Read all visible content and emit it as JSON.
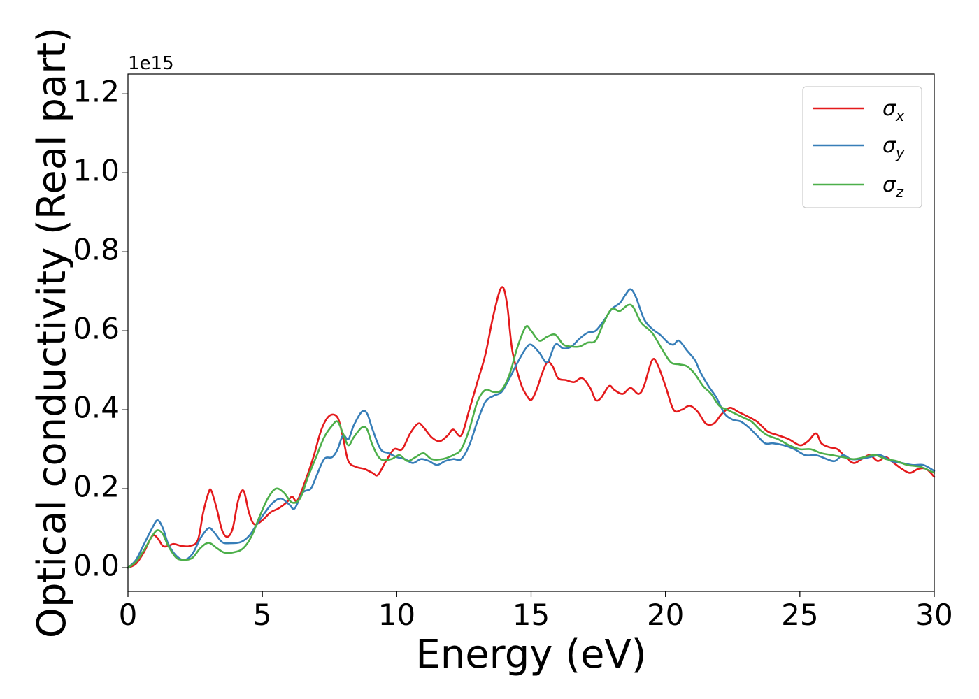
{
  "chart_data": {
    "type": "line",
    "xlabel": "Energy (eV)",
    "ylabel": "Optical conductivity (Real part)",
    "y_offset_text": "1e15",
    "xlim": [
      0,
      30
    ],
    "ylim": [
      -0.06,
      1.25
    ],
    "x_ticks": [
      0,
      5,
      10,
      15,
      20,
      25,
      30
    ],
    "x_tick_labels": [
      "0",
      "5",
      "10",
      "15",
      "20",
      "25",
      "30"
    ],
    "y_ticks": [
      0.0,
      0.2,
      0.4,
      0.6,
      0.8,
      1.0,
      1.2
    ],
    "y_tick_labels": [
      "0.0",
      "0.2",
      "0.4",
      "0.6",
      "0.8",
      "1.0",
      "1.2"
    ],
    "grid": false,
    "legend_position": "top-right",
    "series": [
      {
        "name": "σx",
        "symbol": "σ",
        "subscript": "x",
        "color": "#e41a1c",
        "points": [
          [
            0,
            0
          ],
          [
            0.3,
            0.01
          ],
          [
            0.6,
            0.04
          ],
          [
            0.9,
            0.08
          ],
          [
            1.1,
            0.075
          ],
          [
            1.3,
            0.055
          ],
          [
            1.5,
            0.055
          ],
          [
            1.7,
            0.06
          ],
          [
            2.0,
            0.055
          ],
          [
            2.3,
            0.055
          ],
          [
            2.6,
            0.07
          ],
          [
            2.8,
            0.14
          ],
          [
            3.0,
            0.19
          ],
          [
            3.1,
            0.195
          ],
          [
            3.3,
            0.15
          ],
          [
            3.5,
            0.095
          ],
          [
            3.7,
            0.078
          ],
          [
            3.9,
            0.1
          ],
          [
            4.1,
            0.17
          ],
          [
            4.3,
            0.195
          ],
          [
            4.5,
            0.14
          ],
          [
            4.7,
            0.11
          ],
          [
            5.0,
            0.12
          ],
          [
            5.3,
            0.14
          ],
          [
            5.6,
            0.15
          ],
          [
            5.9,
            0.165
          ],
          [
            6.1,
            0.18
          ],
          [
            6.3,
            0.17
          ],
          [
            6.6,
            0.22
          ],
          [
            6.9,
            0.28
          ],
          [
            7.2,
            0.35
          ],
          [
            7.5,
            0.385
          ],
          [
            7.8,
            0.38
          ],
          [
            8.0,
            0.33
          ],
          [
            8.2,
            0.27
          ],
          [
            8.5,
            0.255
          ],
          [
            8.8,
            0.25
          ],
          [
            9.1,
            0.24
          ],
          [
            9.3,
            0.235
          ],
          [
            9.6,
            0.27
          ],
          [
            9.9,
            0.3
          ],
          [
            10.2,
            0.3
          ],
          [
            10.5,
            0.34
          ],
          [
            10.8,
            0.365
          ],
          [
            11.0,
            0.355
          ],
          [
            11.3,
            0.33
          ],
          [
            11.6,
            0.32
          ],
          [
            11.9,
            0.335
          ],
          [
            12.1,
            0.35
          ],
          [
            12.4,
            0.335
          ],
          [
            12.7,
            0.4
          ],
          [
            13.0,
            0.47
          ],
          [
            13.3,
            0.54
          ],
          [
            13.6,
            0.64
          ],
          [
            13.9,
            0.71
          ],
          [
            14.1,
            0.67
          ],
          [
            14.3,
            0.55
          ],
          [
            14.6,
            0.47
          ],
          [
            14.8,
            0.44
          ],
          [
            15.0,
            0.425
          ],
          [
            15.2,
            0.45
          ],
          [
            15.4,
            0.49
          ],
          [
            15.6,
            0.52
          ],
          [
            15.8,
            0.51
          ],
          [
            16.0,
            0.48
          ],
          [
            16.3,
            0.475
          ],
          [
            16.6,
            0.47
          ],
          [
            16.9,
            0.48
          ],
          [
            17.2,
            0.455
          ],
          [
            17.4,
            0.425
          ],
          [
            17.6,
            0.43
          ],
          [
            17.9,
            0.46
          ],
          [
            18.1,
            0.45
          ],
          [
            18.4,
            0.44
          ],
          [
            18.7,
            0.455
          ],
          [
            19.0,
            0.44
          ],
          [
            19.2,
            0.46
          ],
          [
            19.5,
            0.525
          ],
          [
            19.7,
            0.515
          ],
          [
            20.0,
            0.46
          ],
          [
            20.3,
            0.4
          ],
          [
            20.6,
            0.4
          ],
          [
            20.9,
            0.41
          ],
          [
            21.2,
            0.395
          ],
          [
            21.5,
            0.365
          ],
          [
            21.8,
            0.365
          ],
          [
            22.1,
            0.39
          ],
          [
            22.4,
            0.405
          ],
          [
            22.7,
            0.395
          ],
          [
            23.0,
            0.385
          ],
          [
            23.4,
            0.37
          ],
          [
            23.8,
            0.345
          ],
          [
            24.2,
            0.335
          ],
          [
            24.6,
            0.325
          ],
          [
            25.0,
            0.31
          ],
          [
            25.3,
            0.32
          ],
          [
            25.6,
            0.34
          ],
          [
            25.8,
            0.315
          ],
          [
            26.1,
            0.305
          ],
          [
            26.4,
            0.3
          ],
          [
            26.7,
            0.28
          ],
          [
            27.0,
            0.265
          ],
          [
            27.3,
            0.275
          ],
          [
            27.6,
            0.285
          ],
          [
            27.9,
            0.27
          ],
          [
            28.2,
            0.28
          ],
          [
            28.5,
            0.265
          ],
          [
            28.8,
            0.25
          ],
          [
            29.1,
            0.24
          ],
          [
            29.4,
            0.25
          ],
          [
            29.7,
            0.25
          ],
          [
            30.0,
            0.23
          ]
        ]
      },
      {
        "name": "σy",
        "symbol": "σ",
        "subscript": "y",
        "color": "#377eb8",
        "points": [
          [
            0,
            0
          ],
          [
            0.3,
            0.02
          ],
          [
            0.6,
            0.06
          ],
          [
            0.9,
            0.1
          ],
          [
            1.1,
            0.12
          ],
          [
            1.3,
            0.1
          ],
          [
            1.5,
            0.06
          ],
          [
            1.8,
            0.03
          ],
          [
            2.1,
            0.02
          ],
          [
            2.4,
            0.035
          ],
          [
            2.7,
            0.075
          ],
          [
            3.0,
            0.1
          ],
          [
            3.2,
            0.09
          ],
          [
            3.5,
            0.065
          ],
          [
            3.8,
            0.062
          ],
          [
            4.2,
            0.065
          ],
          [
            4.5,
            0.08
          ],
          [
            4.8,
            0.11
          ],
          [
            5.1,
            0.14
          ],
          [
            5.4,
            0.165
          ],
          [
            5.7,
            0.175
          ],
          [
            6.0,
            0.16
          ],
          [
            6.2,
            0.15
          ],
          [
            6.5,
            0.19
          ],
          [
            6.8,
            0.2
          ],
          [
            7.0,
            0.23
          ],
          [
            7.3,
            0.275
          ],
          [
            7.6,
            0.28
          ],
          [
            7.8,
            0.3
          ],
          [
            8.0,
            0.335
          ],
          [
            8.2,
            0.325
          ],
          [
            8.4,
            0.36
          ],
          [
            8.7,
            0.395
          ],
          [
            8.9,
            0.39
          ],
          [
            9.1,
            0.35
          ],
          [
            9.4,
            0.3
          ],
          [
            9.7,
            0.29
          ],
          [
            10.0,
            0.28
          ],
          [
            10.3,
            0.275
          ],
          [
            10.6,
            0.265
          ],
          [
            10.9,
            0.275
          ],
          [
            11.2,
            0.27
          ],
          [
            11.5,
            0.26
          ],
          [
            11.8,
            0.27
          ],
          [
            12.1,
            0.275
          ],
          [
            12.4,
            0.275
          ],
          [
            12.7,
            0.31
          ],
          [
            13.0,
            0.37
          ],
          [
            13.3,
            0.42
          ],
          [
            13.6,
            0.435
          ],
          [
            13.9,
            0.445
          ],
          [
            14.2,
            0.48
          ],
          [
            14.5,
            0.52
          ],
          [
            14.8,
            0.555
          ],
          [
            15.0,
            0.565
          ],
          [
            15.3,
            0.545
          ],
          [
            15.6,
            0.52
          ],
          [
            15.9,
            0.565
          ],
          [
            16.2,
            0.555
          ],
          [
            16.5,
            0.56
          ],
          [
            16.8,
            0.58
          ],
          [
            17.1,
            0.595
          ],
          [
            17.4,
            0.6
          ],
          [
            17.7,
            0.625
          ],
          [
            18.0,
            0.655
          ],
          [
            18.3,
            0.67
          ],
          [
            18.5,
            0.69
          ],
          [
            18.7,
            0.705
          ],
          [
            18.9,
            0.685
          ],
          [
            19.2,
            0.63
          ],
          [
            19.5,
            0.605
          ],
          [
            19.8,
            0.59
          ],
          [
            20.1,
            0.57
          ],
          [
            20.3,
            0.565
          ],
          [
            20.5,
            0.575
          ],
          [
            20.8,
            0.55
          ],
          [
            21.1,
            0.525
          ],
          [
            21.3,
            0.495
          ],
          [
            21.6,
            0.46
          ],
          [
            21.9,
            0.43
          ],
          [
            22.2,
            0.39
          ],
          [
            22.5,
            0.375
          ],
          [
            22.8,
            0.37
          ],
          [
            23.1,
            0.355
          ],
          [
            23.4,
            0.335
          ],
          [
            23.7,
            0.315
          ],
          [
            24.0,
            0.315
          ],
          [
            24.4,
            0.31
          ],
          [
            24.8,
            0.3
          ],
          [
            25.2,
            0.285
          ],
          [
            25.6,
            0.285
          ],
          [
            26.0,
            0.275
          ],
          [
            26.3,
            0.27
          ],
          [
            26.6,
            0.285
          ],
          [
            26.9,
            0.275
          ],
          [
            27.2,
            0.275
          ],
          [
            27.6,
            0.28
          ],
          [
            28.0,
            0.285
          ],
          [
            28.4,
            0.27
          ],
          [
            28.8,
            0.265
          ],
          [
            29.2,
            0.26
          ],
          [
            29.6,
            0.26
          ],
          [
            30.0,
            0.245
          ]
        ]
      },
      {
        "name": "σz",
        "symbol": "σ",
        "subscript": "z",
        "color": "#4daf4a",
        "points": [
          [
            0,
            0
          ],
          [
            0.3,
            0.015
          ],
          [
            0.6,
            0.045
          ],
          [
            0.9,
            0.08
          ],
          [
            1.1,
            0.095
          ],
          [
            1.3,
            0.085
          ],
          [
            1.5,
            0.055
          ],
          [
            1.8,
            0.025
          ],
          [
            2.1,
            0.02
          ],
          [
            2.4,
            0.025
          ],
          [
            2.7,
            0.05
          ],
          [
            3.0,
            0.063
          ],
          [
            3.3,
            0.05
          ],
          [
            3.6,
            0.038
          ],
          [
            4.0,
            0.04
          ],
          [
            4.3,
            0.05
          ],
          [
            4.6,
            0.08
          ],
          [
            4.9,
            0.13
          ],
          [
            5.2,
            0.175
          ],
          [
            5.5,
            0.2
          ],
          [
            5.8,
            0.19
          ],
          [
            6.1,
            0.165
          ],
          [
            6.4,
            0.175
          ],
          [
            6.7,
            0.23
          ],
          [
            7.0,
            0.28
          ],
          [
            7.3,
            0.33
          ],
          [
            7.6,
            0.36
          ],
          [
            7.8,
            0.37
          ],
          [
            8.0,
            0.34
          ],
          [
            8.2,
            0.31
          ],
          [
            8.4,
            0.33
          ],
          [
            8.7,
            0.355
          ],
          [
            8.9,
            0.35
          ],
          [
            9.1,
            0.31
          ],
          [
            9.4,
            0.275
          ],
          [
            9.8,
            0.275
          ],
          [
            10.1,
            0.285
          ],
          [
            10.4,
            0.27
          ],
          [
            10.7,
            0.28
          ],
          [
            11.0,
            0.29
          ],
          [
            11.3,
            0.275
          ],
          [
            11.7,
            0.275
          ],
          [
            12.1,
            0.285
          ],
          [
            12.4,
            0.3
          ],
          [
            12.7,
            0.35
          ],
          [
            13.0,
            0.42
          ],
          [
            13.3,
            0.45
          ],
          [
            13.6,
            0.445
          ],
          [
            13.9,
            0.45
          ],
          [
            14.2,
            0.49
          ],
          [
            14.5,
            0.56
          ],
          [
            14.8,
            0.61
          ],
          [
            15.0,
            0.6
          ],
          [
            15.3,
            0.575
          ],
          [
            15.6,
            0.585
          ],
          [
            15.9,
            0.59
          ],
          [
            16.2,
            0.565
          ],
          [
            16.5,
            0.56
          ],
          [
            16.8,
            0.56
          ],
          [
            17.1,
            0.57
          ],
          [
            17.4,
            0.575
          ],
          [
            17.7,
            0.62
          ],
          [
            18.0,
            0.655
          ],
          [
            18.3,
            0.65
          ],
          [
            18.6,
            0.665
          ],
          [
            18.8,
            0.66
          ],
          [
            19.1,
            0.62
          ],
          [
            19.5,
            0.595
          ],
          [
            19.9,
            0.55
          ],
          [
            20.2,
            0.52
          ],
          [
            20.5,
            0.515
          ],
          [
            20.8,
            0.51
          ],
          [
            21.1,
            0.49
          ],
          [
            21.4,
            0.46
          ],
          [
            21.7,
            0.44
          ],
          [
            22.0,
            0.41
          ],
          [
            22.3,
            0.4
          ],
          [
            22.6,
            0.39
          ],
          [
            22.9,
            0.38
          ],
          [
            23.2,
            0.37
          ],
          [
            23.5,
            0.35
          ],
          [
            23.8,
            0.335
          ],
          [
            24.2,
            0.325
          ],
          [
            24.6,
            0.31
          ],
          [
            25.0,
            0.3
          ],
          [
            25.4,
            0.3
          ],
          [
            25.8,
            0.29
          ],
          [
            26.2,
            0.285
          ],
          [
            26.6,
            0.28
          ],
          [
            27.0,
            0.275
          ],
          [
            27.4,
            0.28
          ],
          [
            27.8,
            0.285
          ],
          [
            28.2,
            0.275
          ],
          [
            28.6,
            0.27
          ],
          [
            29.0,
            0.26
          ],
          [
            29.5,
            0.255
          ],
          [
            30.0,
            0.24
          ]
        ]
      }
    ]
  }
}
